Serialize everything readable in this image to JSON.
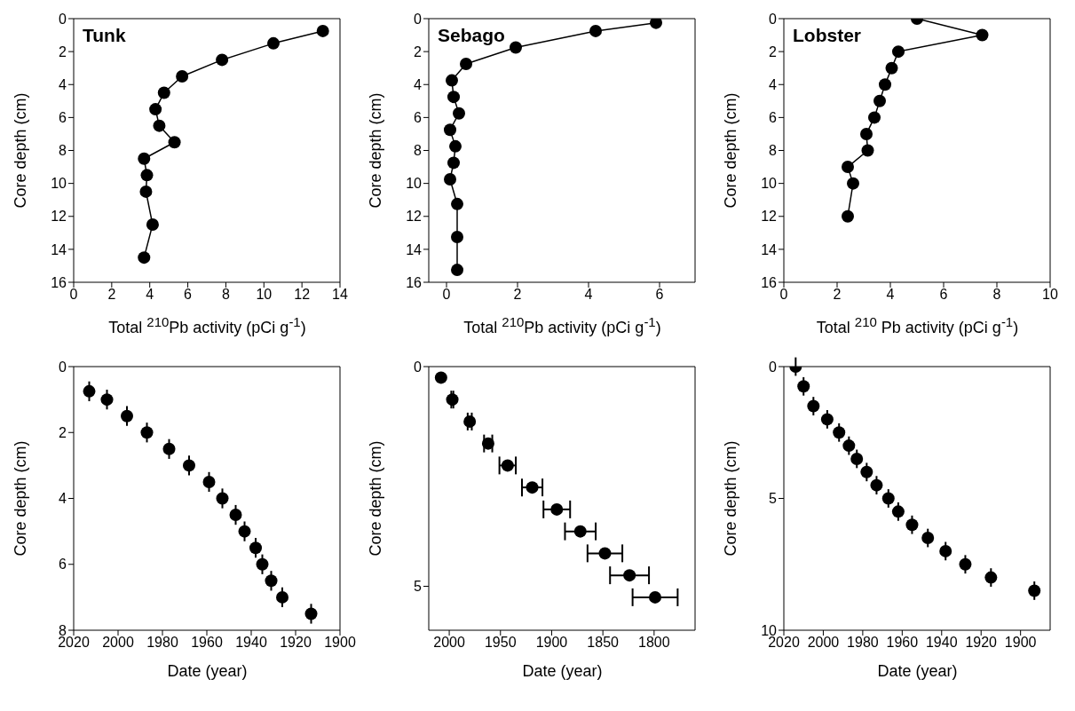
{
  "chart_data": [
    {
      "type": "line",
      "title": "Tunk",
      "xlabel": "Total $^{210}$Pb activity (pCi g$^{-1}$)",
      "ylabel": "Core depth (cm)",
      "marker": "circle",
      "color": "#000000",
      "x": [
        13.1,
        10.5,
        7.8,
        5.7,
        4.75,
        4.3,
        4.5,
        5.3,
        3.7,
        3.85,
        3.8,
        4.15,
        3.7
      ],
      "values": [
        0.75,
        1.5,
        2.5,
        3.5,
        4.5,
        5.5,
        6.5,
        7.5,
        8.5,
        9.5,
        10.5,
        12.5,
        14.5
      ],
      "xlim": [
        0,
        14
      ],
      "xticks": [
        0,
        2,
        4,
        6,
        8,
        10,
        12,
        14
      ],
      "ylim": [
        16,
        0
      ],
      "yticks": [
        0,
        2,
        4,
        6,
        8,
        10,
        12,
        14,
        16
      ]
    },
    {
      "type": "line",
      "title": "Sebago",
      "xlabel": "Total $^{210}$Pb activity (pCi g$^{-1}$)",
      "ylabel": "Core depth (cm)",
      "marker": "circle",
      "color": "#000000",
      "x": [
        5.9,
        4.2,
        1.95,
        0.55,
        0.15,
        0.2,
        0.35,
        0.1,
        0.25,
        0.2,
        0.1,
        0.3,
        0.3,
        0.3
      ],
      "values": [
        0.25,
        0.75,
        1.75,
        2.75,
        3.75,
        4.75,
        5.75,
        6.75,
        7.75,
        8.75,
        9.75,
        11.25,
        13.25,
        15.25
      ],
      "xlim": [
        -0.5,
        7
      ],
      "xticks": [
        0,
        2,
        4,
        6
      ],
      "ylim": [
        16,
        0
      ],
      "yticks": [
        0,
        2,
        4,
        6,
        8,
        10,
        12,
        14,
        16
      ]
    },
    {
      "type": "line",
      "title": "Lobster",
      "xlabel": "Total $^{210}$ Pb activity (pCi g$^{-1}$)",
      "ylabel": "Core depth (cm)",
      "marker": "circle",
      "color": "#000000",
      "x": [
        5.0,
        7.45,
        4.3,
        4.05,
        3.8,
        3.6,
        3.4,
        3.1,
        3.15,
        2.4,
        2.6,
        2.4
      ],
      "values": [
        0,
        1,
        2,
        3,
        4,
        5,
        6,
        7,
        8,
        9,
        10,
        12
      ],
      "xlim": [
        0,
        10
      ],
      "xticks": [
        0,
        2,
        4,
        6,
        8,
        10
      ],
      "ylim": [
        16,
        0
      ],
      "yticks": [
        0,
        2,
        4,
        6,
        8,
        10,
        12,
        14,
        16
      ]
    },
    {
      "type": "scatter",
      "xlabel": "Date (year)",
      "ylabel": "Core depth (cm)",
      "marker": "circle",
      "color": "#000000",
      "x": [
        2013,
        2005,
        1996,
        1987,
        1977,
        1968,
        1959,
        1953,
        1947,
        1943,
        1938,
        1935,
        1931,
        1926,
        1913
      ],
      "values": [
        0.75,
        1.0,
        1.5,
        2.0,
        2.5,
        3.0,
        3.5,
        4.0,
        4.5,
        5.0,
        5.5,
        6.0,
        6.5,
        7.0,
        7.5
      ],
      "errors": [
        0.3,
        0.3,
        0.3,
        0.3,
        0.3,
        0.3,
        0.3,
        0.3,
        0.3,
        0.3,
        0.3,
        0.3,
        0.3,
        0.3,
        0.3
      ],
      "xlim": [
        2020,
        1900
      ],
      "xticks": [
        2020,
        2000,
        1980,
        1960,
        1940,
        1920,
        1900
      ],
      "ylim": [
        8,
        0
      ],
      "yticks": [
        0,
        2,
        4,
        6,
        8
      ]
    },
    {
      "type": "scatter",
      "xlabel": "Date (year)",
      "ylabel": "Core depth (cm)",
      "marker": "circle",
      "color": "#000000",
      "x": [
        2008,
        1997,
        1980,
        1962,
        1943,
        1919,
        1895,
        1872,
        1848,
        1824,
        1799
      ],
      "values": [
        0.25,
        0.75,
        1.25,
        1.75,
        2.25,
        2.75,
        3.25,
        3.75,
        4.25,
        4.75,
        5.25
      ],
      "xerrors": [
        null,
        1,
        2,
        4,
        8,
        10,
        13,
        15,
        17,
        19,
        22
      ],
      "xlim": [
        2020,
        1760
      ],
      "xticks": [
        2000,
        1950,
        1900,
        1850,
        1800
      ],
      "ylim": [
        6,
        0
      ],
      "yticks": [
        0,
        5
      ]
    },
    {
      "type": "scatter",
      "xlabel": "Date (year)",
      "ylabel": "Core depth (cm)",
      "marker": "circle",
      "color": "#000000",
      "x": [
        2014,
        2010,
        2005,
        1998,
        1992,
        1987,
        1983,
        1978,
        1973,
        1967,
        1962,
        1955,
        1947,
        1938,
        1928,
        1915,
        1893
      ],
      "values": [
        0,
        0.75,
        1.5,
        2.0,
        2.5,
        3.0,
        3.5,
        4.0,
        4.5,
        5.0,
        5.5,
        6.0,
        6.5,
        7.0,
        7.5,
        8.0,
        8.5
      ],
      "errors": [
        0.35,
        0.35,
        0.35,
        0.35,
        0.35,
        0.35,
        0.35,
        0.35,
        0.35,
        0.35,
        0.35,
        0.35,
        0.35,
        0.35,
        0.35,
        0.35,
        0.35
      ],
      "xlim": [
        2020,
        1885
      ],
      "xticks": [
        2020,
        2000,
        1980,
        1960,
        1940,
        1920,
        1900
      ],
      "ylim": [
        10,
        0
      ],
      "yticks": [
        0,
        5,
        10
      ]
    }
  ]
}
